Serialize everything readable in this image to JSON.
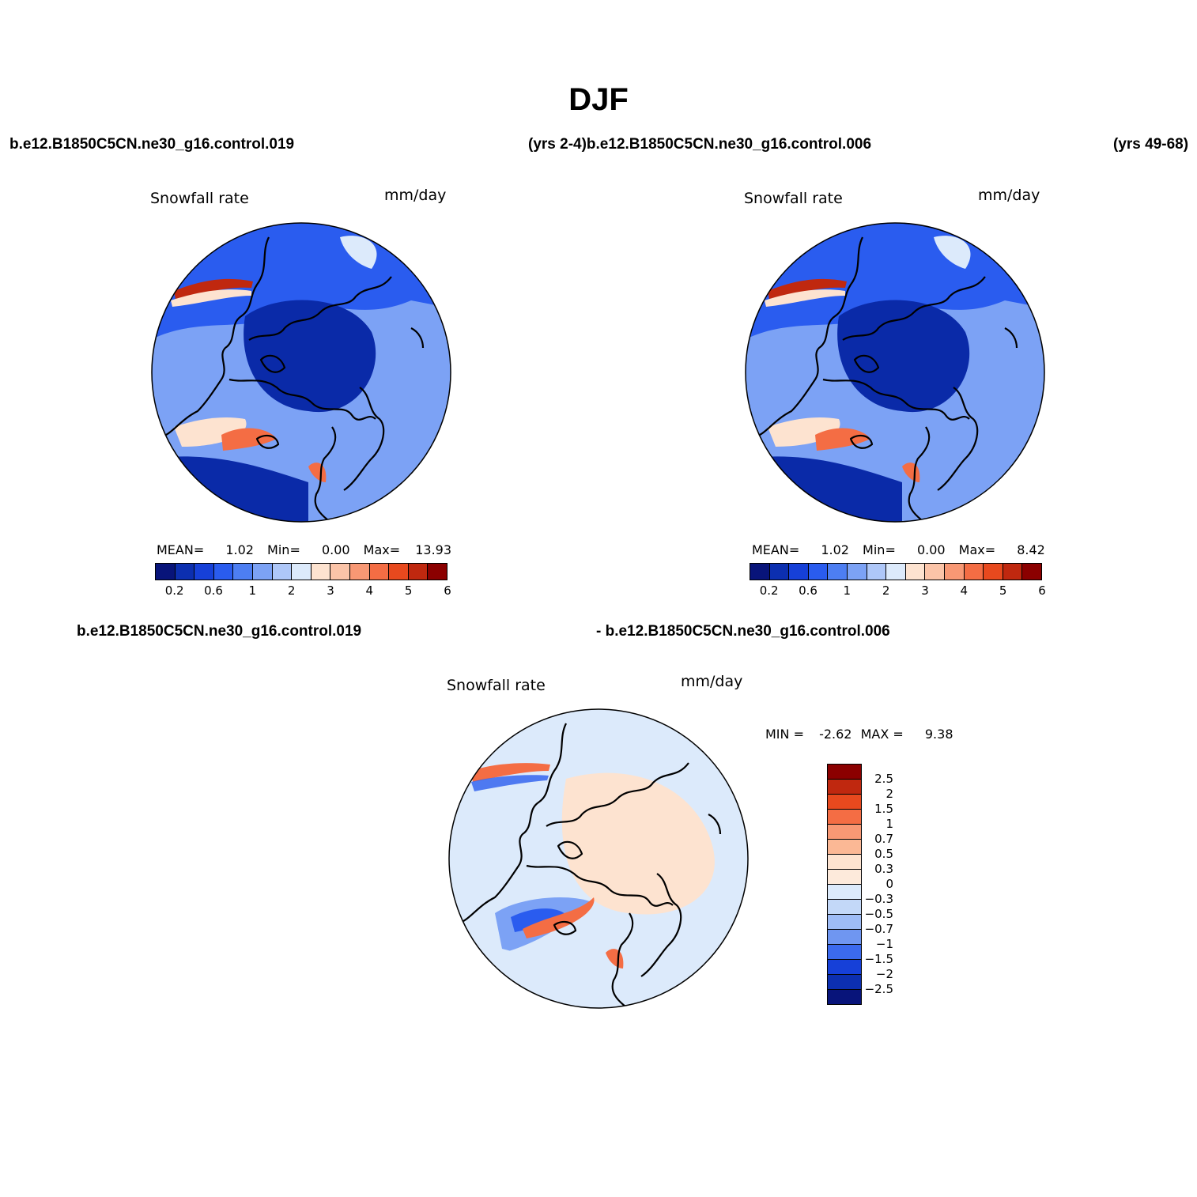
{
  "figure": {
    "season_title": "DJF",
    "case_a": "b.e12.B1850C5CN.ne30_g16.control.019",
    "years_a": "(yrs 2-4)",
    "case_b": "b.e12.B1850C5CN.ne30_g16.control.006",
    "years_b": "(yrs 49-68)",
    "diff_case_a": "b.e12.B1850C5CN.ne30_g16.control.019",
    "diff_case_b": "- b.e12.B1850C5CN.ne30_g16.control.006"
  },
  "panels": {
    "a": {
      "variable": "Snowfall rate",
      "units": "mm/day",
      "mean_label": "MEAN=",
      "mean": "1.02",
      "min_label": "Min=",
      "min": "0.00",
      "max_label": "Max=",
      "max": "13.93"
    },
    "b": {
      "variable": "Snowfall rate",
      "units": "mm/day",
      "mean_label": "MEAN=",
      "mean": "1.02",
      "min_label": "Min=",
      "min": "0.00",
      "max_label": "Max=",
      "max": "8.42"
    },
    "diff": {
      "variable": "Snowfall rate",
      "units": "mm/day",
      "min_label": "MIN =",
      "min": "-2.62",
      "max_label": "MAX =",
      "max": "9.38"
    }
  },
  "colorbar_main": {
    "colors": [
      "#08147a",
      "#0c2fb0",
      "#1640d8",
      "#2a5cef",
      "#4d7ef2",
      "#7ca2f5",
      "#aec7f8",
      "#dceafb",
      "#fde3d0",
      "#fbc4a8",
      "#f89874",
      "#f46d44",
      "#e8491e",
      "#c0280f",
      "#8b0000"
    ],
    "tick_labels": [
      "0.2",
      "0.6",
      "1",
      "2",
      "3",
      "4",
      "5",
      "6"
    ]
  },
  "colorbar_diff": {
    "colors": [
      "#8b0000",
      "#c0280f",
      "#e8491e",
      "#f46d44",
      "#f89874",
      "#fbb895",
      "#fde3d0",
      "#fdeadb",
      "#dceafb",
      "#c3d8f8",
      "#9ebcf6",
      "#6f96f1",
      "#3b6aee",
      "#1640d8",
      "#0c2fb0",
      "#08147a"
    ],
    "tick_labels": [
      "2.5",
      "2",
      "1.5",
      "1",
      "0.7",
      "0.5",
      "0.3",
      "0",
      "−0.3",
      "−0.5",
      "−0.7",
      "−1",
      "−1.5",
      "−2",
      "−2.5"
    ]
  },
  "map_colors": {
    "deep_blue": "#0a2aa8",
    "mid_blue": "#2a5cef",
    "light_blue": "#7ca2f5",
    "pale_blue": "#dceafb",
    "peach": "#fde3d0",
    "orange": "#f46d44",
    "dark_red": "#c0280f"
  }
}
